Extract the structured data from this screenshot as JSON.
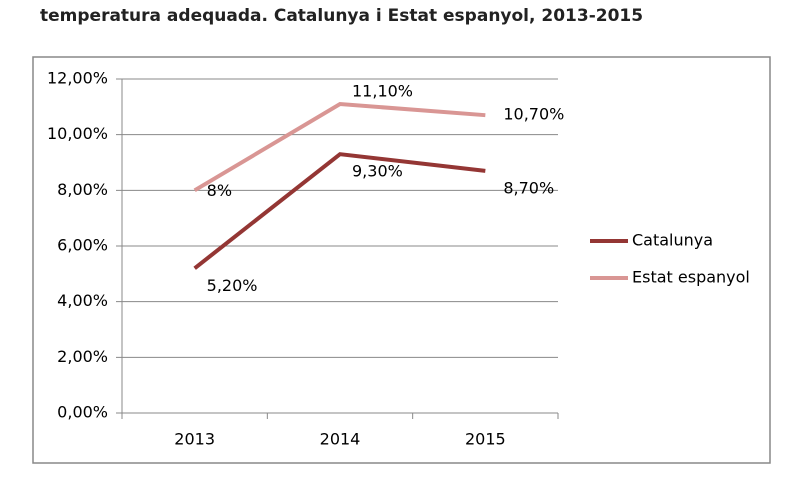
{
  "chart_data": {
    "type": "line",
    "title": "temperatura adequada. Catalunya i Estat espanyol, 2013-2015",
    "categories": [
      "2013",
      "2014",
      "2015"
    ],
    "series": [
      {
        "name": "Catalunya",
        "color": "#943634",
        "values": [
          5.2,
          9.3,
          8.7
        ],
        "value_labels": [
          "5,20%",
          "9,30%",
          "8,70%"
        ]
      },
      {
        "name": "Estat espanyol",
        "color": "#d99694",
        "values": [
          8,
          11.1,
          10.7
        ],
        "value_labels": [
          "8%",
          "11,10%",
          "10,70%"
        ]
      }
    ],
    "ylim": [
      0,
      12
    ],
    "yticks": [
      {
        "value": 0,
        "label": "0,00%"
      },
      {
        "value": 2,
        "label": "2,00%"
      },
      {
        "value": 4,
        "label": "4,00%"
      },
      {
        "value": 6,
        "label": "6,00%"
      },
      {
        "value": 8,
        "label": "8,00%"
      },
      {
        "value": 10,
        "label": "10,00%"
      },
      {
        "value": 12,
        "label": "12,00%"
      }
    ],
    "grid": true,
    "legend": "right"
  }
}
